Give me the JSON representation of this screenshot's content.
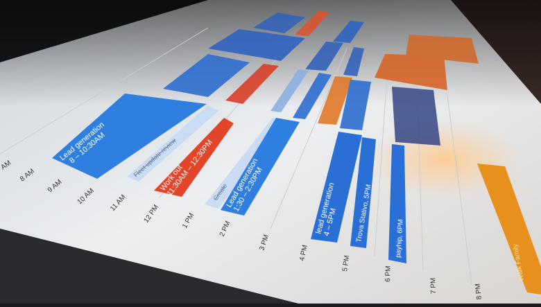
{
  "time_labels": [
    "AM",
    "8 AM",
    "9 AM",
    "10 AM",
    "11 AM",
    "12 PM",
    "1 PM",
    "2 PM",
    "3 PM",
    "4 PM",
    "5 PM",
    "6 PM",
    "7 PM",
    "8 PM"
  ],
  "events": [
    {
      "title": "Lead generation",
      "time": "8 – 10:30AM",
      "color": "#2f7fe0"
    },
    {
      "title": "Fleet update review",
      "time": "",
      "color": "#c9dcf3",
      "task": true
    },
    {
      "title": "Work out",
      "time": "11:30AM – 12:30PM",
      "color": "#e2452a"
    },
    {
      "title": "Create",
      "time": "",
      "color": "#c9dcf3",
      "task": true
    },
    {
      "title": "Lead generation",
      "time": "1:30 – 2:30PM",
      "color": "#2f7fe0"
    },
    {
      "title": "lead generation",
      "time": "4 – 5PM",
      "color": "#2a6fd6"
    },
    {
      "title": "Trova Stativo, 5PM",
      "time": "",
      "color": "#2a6fd6"
    },
    {
      "title": "payhip, 6PM",
      "time": "",
      "color": "#2a6fd6"
    },
    {
      "title": "Walk Family",
      "time": "",
      "color": "#e8901e"
    }
  ],
  "colors": {
    "screen": "#e9ebee",
    "blue": "#2f7fe0",
    "red": "#e2452a",
    "orange": "#e8901e",
    "task": "#c9dcf3"
  }
}
